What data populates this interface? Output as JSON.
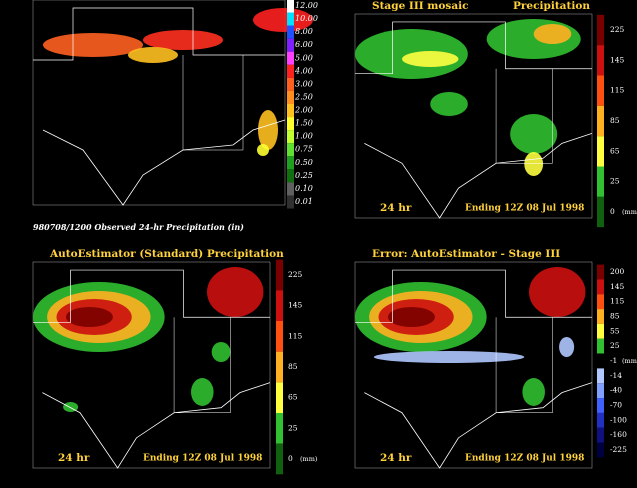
{
  "panels": [
    {
      "caption": "980708/1200 Observed 24-hr Precipitation (in)",
      "legend": [
        "12.00",
        "10.00",
        "8.00",
        "6.00",
        "5.00",
        "4.00",
        "3.00",
        "2.50",
        "2.00",
        "1.50",
        "1.00",
        "0.75",
        "0.50",
        "0.25",
        "0.10",
        "0.01"
      ]
    },
    {
      "title": "Stage III mosaic",
      "subtitle": "Precipitation",
      "period": "24 hr",
      "ending": "Ending 12Z 08 Jul 1998",
      "legend": [
        "225",
        "145",
        "115",
        "85",
        "65",
        "25",
        "0"
      ],
      "unit": "(mm)"
    },
    {
      "title": "AutoEstimator (Standard) Precipitation",
      "period": "24 hr",
      "ending": "Ending 12Z 08 Jul 1998",
      "legend": [
        "225",
        "145",
        "115",
        "85",
        "65",
        "25",
        "0"
      ],
      "unit": "(mm)"
    },
    {
      "title": "Error: AutoEstimator - Stage III",
      "period": "24 hr",
      "ending": "Ending 12Z 08 Jul 1998",
      "legend": [
        "200",
        "145",
        "115",
        "85",
        "55",
        "25",
        "-1",
        "-14",
        "-40",
        "-70",
        "-100",
        "-160",
        "-225"
      ],
      "unit": "(mm)"
    }
  ]
}
